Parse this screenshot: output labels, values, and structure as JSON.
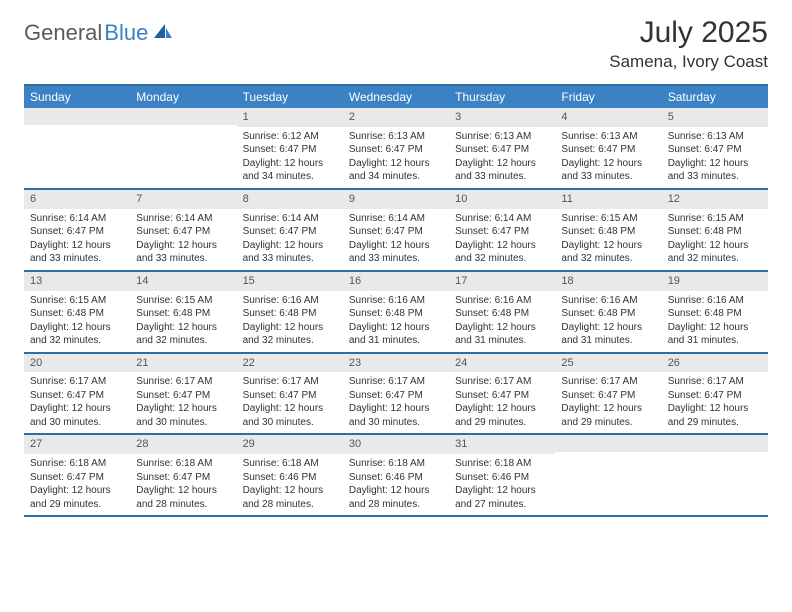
{
  "logo": {
    "text1": "General",
    "text2": "Blue"
  },
  "title": "July 2025",
  "location": "Samena, Ivory Coast",
  "colors": {
    "header_bg": "#3b82c4",
    "header_text": "#ffffff",
    "rule": "#2f6da3",
    "day_num_bg": "#e9e9e9",
    "day_num_text": "#555555",
    "body_text": "#333333",
    "logo_gray": "#5a5a5a",
    "logo_blue": "#3b82c4"
  },
  "day_headers": [
    "Sunday",
    "Monday",
    "Tuesday",
    "Wednesday",
    "Thursday",
    "Friday",
    "Saturday"
  ],
  "weeks": [
    [
      {
        "day": "",
        "sunrise": "",
        "sunset": "",
        "daylight": ""
      },
      {
        "day": "",
        "sunrise": "",
        "sunset": "",
        "daylight": ""
      },
      {
        "day": "1",
        "sunrise": "Sunrise: 6:12 AM",
        "sunset": "Sunset: 6:47 PM",
        "daylight": "Daylight: 12 hours and 34 minutes."
      },
      {
        "day": "2",
        "sunrise": "Sunrise: 6:13 AM",
        "sunset": "Sunset: 6:47 PM",
        "daylight": "Daylight: 12 hours and 34 minutes."
      },
      {
        "day": "3",
        "sunrise": "Sunrise: 6:13 AM",
        "sunset": "Sunset: 6:47 PM",
        "daylight": "Daylight: 12 hours and 33 minutes."
      },
      {
        "day": "4",
        "sunrise": "Sunrise: 6:13 AM",
        "sunset": "Sunset: 6:47 PM",
        "daylight": "Daylight: 12 hours and 33 minutes."
      },
      {
        "day": "5",
        "sunrise": "Sunrise: 6:13 AM",
        "sunset": "Sunset: 6:47 PM",
        "daylight": "Daylight: 12 hours and 33 minutes."
      }
    ],
    [
      {
        "day": "6",
        "sunrise": "Sunrise: 6:14 AM",
        "sunset": "Sunset: 6:47 PM",
        "daylight": "Daylight: 12 hours and 33 minutes."
      },
      {
        "day": "7",
        "sunrise": "Sunrise: 6:14 AM",
        "sunset": "Sunset: 6:47 PM",
        "daylight": "Daylight: 12 hours and 33 minutes."
      },
      {
        "day": "8",
        "sunrise": "Sunrise: 6:14 AM",
        "sunset": "Sunset: 6:47 PM",
        "daylight": "Daylight: 12 hours and 33 minutes."
      },
      {
        "day": "9",
        "sunrise": "Sunrise: 6:14 AM",
        "sunset": "Sunset: 6:47 PM",
        "daylight": "Daylight: 12 hours and 33 minutes."
      },
      {
        "day": "10",
        "sunrise": "Sunrise: 6:14 AM",
        "sunset": "Sunset: 6:47 PM",
        "daylight": "Daylight: 12 hours and 32 minutes."
      },
      {
        "day": "11",
        "sunrise": "Sunrise: 6:15 AM",
        "sunset": "Sunset: 6:48 PM",
        "daylight": "Daylight: 12 hours and 32 minutes."
      },
      {
        "day": "12",
        "sunrise": "Sunrise: 6:15 AM",
        "sunset": "Sunset: 6:48 PM",
        "daylight": "Daylight: 12 hours and 32 minutes."
      }
    ],
    [
      {
        "day": "13",
        "sunrise": "Sunrise: 6:15 AM",
        "sunset": "Sunset: 6:48 PM",
        "daylight": "Daylight: 12 hours and 32 minutes."
      },
      {
        "day": "14",
        "sunrise": "Sunrise: 6:15 AM",
        "sunset": "Sunset: 6:48 PM",
        "daylight": "Daylight: 12 hours and 32 minutes."
      },
      {
        "day": "15",
        "sunrise": "Sunrise: 6:16 AM",
        "sunset": "Sunset: 6:48 PM",
        "daylight": "Daylight: 12 hours and 32 minutes."
      },
      {
        "day": "16",
        "sunrise": "Sunrise: 6:16 AM",
        "sunset": "Sunset: 6:48 PM",
        "daylight": "Daylight: 12 hours and 31 minutes."
      },
      {
        "day": "17",
        "sunrise": "Sunrise: 6:16 AM",
        "sunset": "Sunset: 6:48 PM",
        "daylight": "Daylight: 12 hours and 31 minutes."
      },
      {
        "day": "18",
        "sunrise": "Sunrise: 6:16 AM",
        "sunset": "Sunset: 6:48 PM",
        "daylight": "Daylight: 12 hours and 31 minutes."
      },
      {
        "day": "19",
        "sunrise": "Sunrise: 6:16 AM",
        "sunset": "Sunset: 6:48 PM",
        "daylight": "Daylight: 12 hours and 31 minutes."
      }
    ],
    [
      {
        "day": "20",
        "sunrise": "Sunrise: 6:17 AM",
        "sunset": "Sunset: 6:47 PM",
        "daylight": "Daylight: 12 hours and 30 minutes."
      },
      {
        "day": "21",
        "sunrise": "Sunrise: 6:17 AM",
        "sunset": "Sunset: 6:47 PM",
        "daylight": "Daylight: 12 hours and 30 minutes."
      },
      {
        "day": "22",
        "sunrise": "Sunrise: 6:17 AM",
        "sunset": "Sunset: 6:47 PM",
        "daylight": "Daylight: 12 hours and 30 minutes."
      },
      {
        "day": "23",
        "sunrise": "Sunrise: 6:17 AM",
        "sunset": "Sunset: 6:47 PM",
        "daylight": "Daylight: 12 hours and 30 minutes."
      },
      {
        "day": "24",
        "sunrise": "Sunrise: 6:17 AM",
        "sunset": "Sunset: 6:47 PM",
        "daylight": "Daylight: 12 hours and 29 minutes."
      },
      {
        "day": "25",
        "sunrise": "Sunrise: 6:17 AM",
        "sunset": "Sunset: 6:47 PM",
        "daylight": "Daylight: 12 hours and 29 minutes."
      },
      {
        "day": "26",
        "sunrise": "Sunrise: 6:17 AM",
        "sunset": "Sunset: 6:47 PM",
        "daylight": "Daylight: 12 hours and 29 minutes."
      }
    ],
    [
      {
        "day": "27",
        "sunrise": "Sunrise: 6:18 AM",
        "sunset": "Sunset: 6:47 PM",
        "daylight": "Daylight: 12 hours and 29 minutes."
      },
      {
        "day": "28",
        "sunrise": "Sunrise: 6:18 AM",
        "sunset": "Sunset: 6:47 PM",
        "daylight": "Daylight: 12 hours and 28 minutes."
      },
      {
        "day": "29",
        "sunrise": "Sunrise: 6:18 AM",
        "sunset": "Sunset: 6:46 PM",
        "daylight": "Daylight: 12 hours and 28 minutes."
      },
      {
        "day": "30",
        "sunrise": "Sunrise: 6:18 AM",
        "sunset": "Sunset: 6:46 PM",
        "daylight": "Daylight: 12 hours and 28 minutes."
      },
      {
        "day": "31",
        "sunrise": "Sunrise: 6:18 AM",
        "sunset": "Sunset: 6:46 PM",
        "daylight": "Daylight: 12 hours and 27 minutes."
      },
      {
        "day": "",
        "sunrise": "",
        "sunset": "",
        "daylight": ""
      },
      {
        "day": "",
        "sunrise": "",
        "sunset": "",
        "daylight": ""
      }
    ]
  ]
}
